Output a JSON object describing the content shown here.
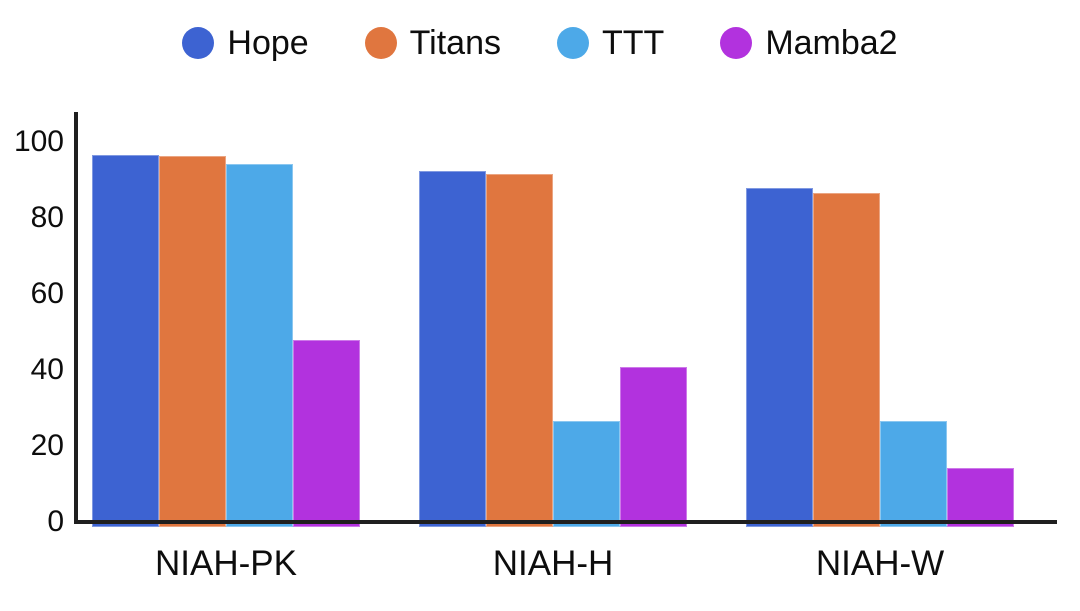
{
  "chart_data": {
    "type": "bar",
    "title": "",
    "xlabel": "",
    "ylabel": "",
    "categories": [
      "NIAH-PK",
      "NIAH-H",
      "NIAH-W"
    ],
    "series": [
      {
        "name": "Hope",
        "color": "#3d63d2",
        "values": [
          96.7,
          92.3,
          87.8
        ]
      },
      {
        "name": "Titans",
        "color": "#e0763f",
        "values": [
          96.4,
          91.5,
          86.6
        ]
      },
      {
        "name": "TTT",
        "color": "#4da9e8",
        "values": [
          94.1,
          26.6,
          26.6
        ]
      },
      {
        "name": "Mamba2",
        "color": "#b232de",
        "values": [
          47.9,
          40.8,
          14.3
        ]
      }
    ],
    "ylim": [
      0,
      100
    ],
    "yticks": [
      0,
      20,
      40,
      60,
      80,
      100
    ],
    "legend_position": "top",
    "grid": false,
    "axis_color": "#1f1f1f",
    "background_color": "#ffffff"
  }
}
